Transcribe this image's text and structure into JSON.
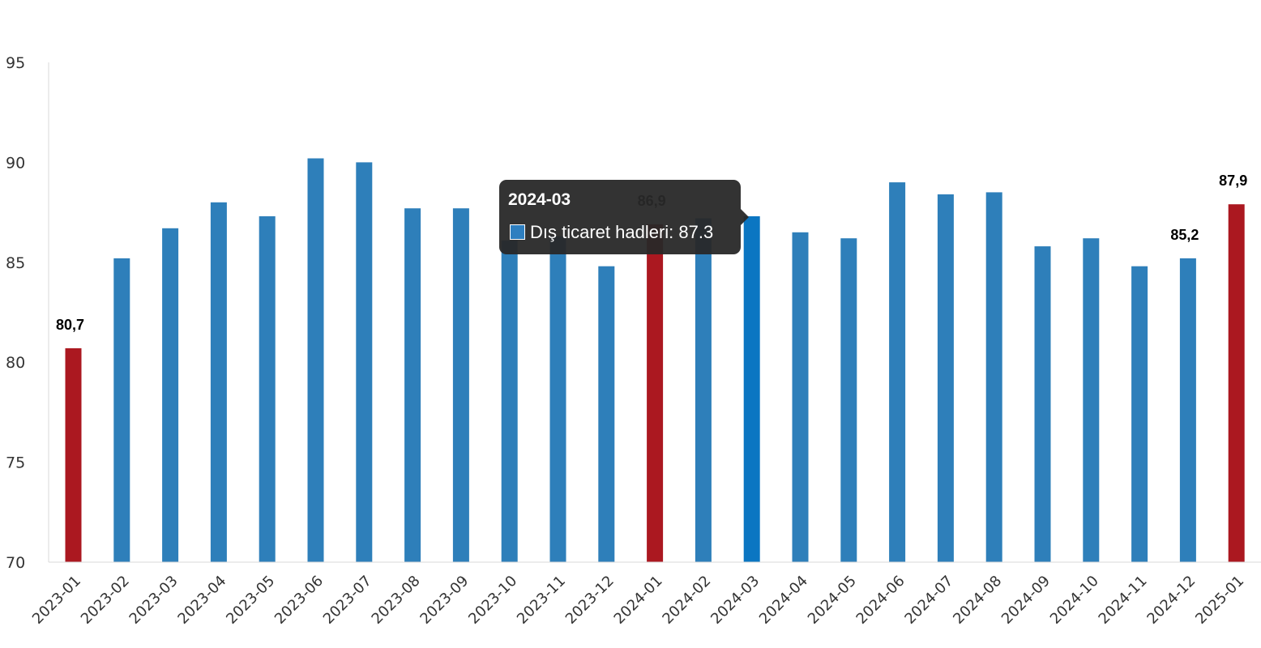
{
  "chart_data": {
    "type": "bar",
    "categories": [
      "2023-01",
      "2023-02",
      "2023-03",
      "2023-04",
      "2023-05",
      "2023-06",
      "2023-07",
      "2023-08",
      "2023-09",
      "2023-10",
      "2023-11",
      "2023-12",
      "2024-01",
      "2024-02",
      "2024-03",
      "2024-04",
      "2024-05",
      "2024-06",
      "2024-07",
      "2024-08",
      "2024-09",
      "2024-10",
      "2024-11",
      "2024-12",
      "2025-01"
    ],
    "series": [
      {
        "name": "Dış ticaret hadleri",
        "values": [
          80.7,
          85.2,
          86.7,
          88.0,
          87.3,
          90.2,
          90.0,
          87.7,
          87.7,
          86.1,
          86.3,
          84.8,
          86.9,
          87.2,
          87.3,
          86.5,
          86.2,
          89.0,
          88.4,
          88.5,
          85.8,
          86.2,
          84.8,
          85.2,
          87.9
        ]
      }
    ],
    "highlighted_bars": [
      0,
      12,
      24
    ],
    "hovered_bar": 14,
    "data_labels": [
      {
        "index": 0,
        "text": "80,7"
      },
      {
        "index": 12,
        "text": "86,9"
      },
      {
        "index": 23,
        "text": "85,2"
      },
      {
        "index": 24,
        "text": "87,9"
      }
    ],
    "ylim": [
      70,
      95
    ],
    "yticks": [
      70,
      75,
      80,
      85,
      90,
      95
    ],
    "grid": false,
    "colors": {
      "bar": "#2e7fba",
      "highlight": "#ab1820",
      "hover": "#0b76c2",
      "axis": "#d9d9d9"
    }
  },
  "tooltip": {
    "title": "2024-03",
    "series_name": "Dış ticaret hadleri",
    "value": "87.3",
    "text": "Dış ticaret hadleri: 87.3"
  }
}
